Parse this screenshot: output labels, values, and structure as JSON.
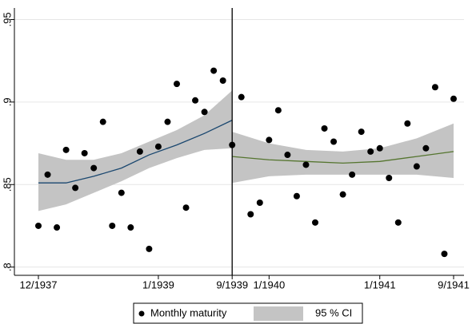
{
  "chart_data": {
    "type": "scatter",
    "x": [
      "12/1937",
      "1/1938",
      "2/1938",
      "3/1938",
      "4/1938",
      "5/1938",
      "6/1938",
      "7/1938",
      "8/1938",
      "9/1938",
      "10/1938",
      "11/1938",
      "12/1938",
      "1/1939",
      "2/1939",
      "3/1939",
      "4/1939",
      "5/1939",
      "6/1939",
      "7/1939",
      "8/1939",
      "9/1939",
      "10/1939",
      "11/1939",
      "12/1939",
      "1/1940",
      "2/1940",
      "3/1940",
      "4/1940",
      "5/1940",
      "6/1940",
      "7/1940",
      "8/1940",
      "9/1940",
      "10/1940",
      "11/1940",
      "12/1940",
      "1/1941",
      "2/1941",
      "3/1941",
      "4/1941",
      "5/1941",
      "6/1941",
      "7/1941",
      "8/1941",
      "9/1941"
    ],
    "series": [
      {
        "name": "Monthly maturity",
        "color": "#000000",
        "values": [
          0.825,
          0.856,
          0.824,
          0.871,
          0.848,
          0.869,
          0.86,
          0.888,
          0.825,
          0.845,
          0.824,
          0.87,
          0.811,
          0.873,
          0.888,
          0.911,
          0.836,
          0.901,
          0.894,
          0.919,
          0.913,
          0.874,
          0.903,
          0.832,
          0.839,
          0.877,
          0.895,
          0.868,
          0.843,
          0.862,
          0.827,
          0.884,
          0.876,
          0.844,
          0.856,
          0.882,
          0.87,
          0.872,
          0.854,
          0.827,
          0.887,
          0.861,
          0.872,
          0.909,
          0.808,
          0.902
        ]
      }
    ],
    "fits": [
      {
        "color": "#1a476f",
        "x": [
          "12/1937",
          "3/1938",
          "6/1938",
          "9/1938",
          "12/1938",
          "3/1939",
          "6/1939",
          "9/1939"
        ],
        "values": [
          0.851,
          0.851,
          0.855,
          0.86,
          0.868,
          0.874,
          0.881,
          0.889
        ],
        "lower": [
          0.834,
          0.838,
          0.845,
          0.852,
          0.86,
          0.866,
          0.871,
          0.872
        ],
        "upper": [
          0.869,
          0.865,
          0.865,
          0.869,
          0.876,
          0.883,
          0.892,
          0.907
        ]
      },
      {
        "color": "#55752f",
        "x": [
          "9/1939",
          "1/1940",
          "5/1940",
          "9/1940",
          "1/1941",
          "5/1941",
          "9/1941"
        ],
        "values": [
          0.867,
          0.865,
          0.864,
          0.863,
          0.864,
          0.867,
          0.87
        ],
        "lower": [
          0.851,
          0.855,
          0.856,
          0.856,
          0.856,
          0.856,
          0.854
        ],
        "upper": [
          0.882,
          0.875,
          0.871,
          0.87,
          0.872,
          0.878,
          0.887
        ]
      }
    ],
    "ci_label": "95 % CI",
    "ci_color": "#c4c4c4",
    "cutoff": "9/1939",
    "xlim": [
      "12/1937",
      "9/1941"
    ],
    "xticks": [
      "12/1937",
      "1/1939",
      "9/1939",
      "1/1940",
      "1/1941",
      "9/1941"
    ],
    "ylim": [
      0.795,
      0.957
    ],
    "yticks": [
      {
        "value": 0.8,
        "label": ".8"
      },
      {
        "value": 0.85,
        "label": ".85"
      },
      {
        "value": 0.9,
        "label": ".9"
      },
      {
        "value": 0.95,
        "label": ".95"
      }
    ],
    "grid": true
  }
}
